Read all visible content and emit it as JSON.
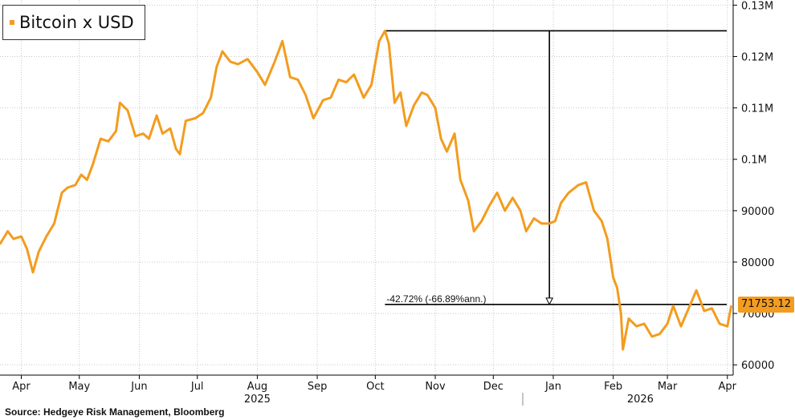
{
  "legend": {
    "label": "Bitcoin x USD",
    "swatch_color": "#f39c1f"
  },
  "source": "Source: Hedgeye Risk Management, Bloomberg",
  "last_value_label": "71753.12",
  "annotation": {
    "text": "-42.72% (-66.89%ann.)"
  },
  "colors": {
    "line": "#f39c1f",
    "grid": "#c8c8c8",
    "axis": "#000000",
    "badge": "#f39c1f"
  },
  "chart_data": {
    "type": "line",
    "title": "Bitcoin x USD",
    "xlabel": "",
    "ylabel": "",
    "x_range": [
      "2025-03-21",
      "2026-04-04"
    ],
    "ylim": [
      58000,
      131000
    ],
    "y_ticks": [
      60000,
      70000,
      80000,
      90000,
      100000,
      110000,
      120000,
      130000
    ],
    "y_tick_labels": [
      "60000",
      "70000",
      "80000",
      "90000",
      "0.1M",
      "0.11M",
      "0.12M",
      "0.13M"
    ],
    "x_ticks": [
      {
        "date": "2025-04-01",
        "label": "Apr"
      },
      {
        "date": "2025-05-01",
        "label": "May"
      },
      {
        "date": "2025-06-01",
        "label": "Jun"
      },
      {
        "date": "2025-07-01",
        "label": "Jul"
      },
      {
        "date": "2025-08-01",
        "label": "Aug"
      },
      {
        "date": "2025-09-01",
        "label": "Sep"
      },
      {
        "date": "2025-10-01",
        "label": "Oct"
      },
      {
        "date": "2025-11-01",
        "label": "Nov"
      },
      {
        "date": "2025-12-01",
        "label": "Dec"
      },
      {
        "date": "2026-01-01",
        "label": "Jan"
      },
      {
        "date": "2026-02-01",
        "label": "Feb"
      },
      {
        "date": "2026-03-01",
        "label": "Mar"
      },
      {
        "date": "2026-04-01",
        "label": "Apr"
      }
    ],
    "year_labels": [
      {
        "date": "2025-08-01",
        "label": "2025"
      },
      {
        "date": "2026-02-15",
        "label": "2026"
      }
    ],
    "grid": true,
    "legend_position": "top-left",
    "series": [
      {
        "name": "Bitcoin x USD",
        "x": [
          "2025-03-21",
          "2025-03-25",
          "2025-03-28",
          "2025-04-01",
          "2025-04-04",
          "2025-04-07",
          "2025-04-10",
          "2025-04-14",
          "2025-04-18",
          "2025-04-22",
          "2025-04-25",
          "2025-04-29",
          "2025-05-02",
          "2025-05-05",
          "2025-05-08",
          "2025-05-12",
          "2025-05-16",
          "2025-05-20",
          "2025-05-22",
          "2025-05-26",
          "2025-05-30",
          "2025-06-03",
          "2025-06-06",
          "2025-06-10",
          "2025-06-13",
          "2025-06-17",
          "2025-06-20",
          "2025-06-22",
          "2025-06-25",
          "2025-06-30",
          "2025-07-04",
          "2025-07-08",
          "2025-07-11",
          "2025-07-14",
          "2025-07-18",
          "2025-07-22",
          "2025-07-27",
          "2025-08-01",
          "2025-08-05",
          "2025-08-10",
          "2025-08-14",
          "2025-08-18",
          "2025-08-22",
          "2025-08-26",
          "2025-08-30",
          "2025-09-04",
          "2025-09-08",
          "2025-09-12",
          "2025-09-16",
          "2025-09-20",
          "2025-09-25",
          "2025-09-29",
          "2025-10-03",
          "2025-10-06",
          "2025-10-08",
          "2025-10-11",
          "2025-10-14",
          "2025-10-17",
          "2025-10-21",
          "2025-10-25",
          "2025-10-28",
          "2025-11-01",
          "2025-11-04",
          "2025-11-07",
          "2025-11-11",
          "2025-11-14",
          "2025-11-18",
          "2025-11-21",
          "2025-11-25",
          "2025-11-29",
          "2025-12-03",
          "2025-12-07",
          "2025-12-11",
          "2025-12-15",
          "2025-12-18",
          "2025-12-22",
          "2025-12-26",
          "2025-12-30",
          "2026-01-02",
          "2026-01-05",
          "2026-01-09",
          "2026-01-14",
          "2026-01-18",
          "2026-01-22",
          "2026-01-26",
          "2026-01-29",
          "2026-02-01",
          "2026-02-03",
          "2026-02-05",
          "2026-02-06",
          "2026-02-09",
          "2026-02-13",
          "2026-02-17",
          "2026-02-21",
          "2026-02-25",
          "2026-03-01",
          "2026-03-04",
          "2026-03-08",
          "2026-03-12",
          "2026-03-16",
          "2026-03-20",
          "2026-03-24",
          "2026-03-28",
          "2026-04-01",
          "2026-04-03"
        ],
        "y": [
          83500,
          86000,
          84500,
          85000,
          82500,
          78000,
          82000,
          85000,
          87500,
          93500,
          94500,
          95000,
          97000,
          96000,
          99000,
          104000,
          103500,
          105500,
          111000,
          109500,
          104500,
          105000,
          104000,
          108500,
          105000,
          106000,
          102000,
          101000,
          107500,
          108000,
          109000,
          112000,
          118000,
          121000,
          119000,
          118500,
          119500,
          117000,
          114500,
          119000,
          123000,
          116000,
          115500,
          112500,
          108000,
          111500,
          112000,
          115500,
          115000,
          116500,
          112000,
          114500,
          123000,
          125000,
          122500,
          111000,
          113000,
          106500,
          110500,
          113000,
          112500,
          110000,
          104000,
          101500,
          105000,
          96000,
          92000,
          86000,
          88000,
          91000,
          93500,
          90000,
          92500,
          90000,
          86000,
          88500,
          87500,
          87500,
          88000,
          91500,
          93500,
          95000,
          95500,
          90000,
          88000,
          84500,
          77000,
          75000,
          70000,
          63000,
          69000,
          67500,
          68000,
          65500,
          66000,
          68000,
          71500,
          67500,
          71000,
          74500,
          70500,
          71000,
          68000,
          67500,
          71500
        ]
      }
    ],
    "annotation_lines": [
      {
        "type": "horizontal",
        "y": 125000,
        "x_from": "2025-10-06",
        "x_to": "2026-04-04"
      },
      {
        "type": "horizontal",
        "y": 71753.12,
        "x_from": "2025-10-06",
        "x_to": "2026-04-04"
      },
      {
        "type": "arrow",
        "x": "2025-12-30",
        "y_from": 125000,
        "y_to": 71753.12
      }
    ],
    "last_value": 71753.12
  }
}
